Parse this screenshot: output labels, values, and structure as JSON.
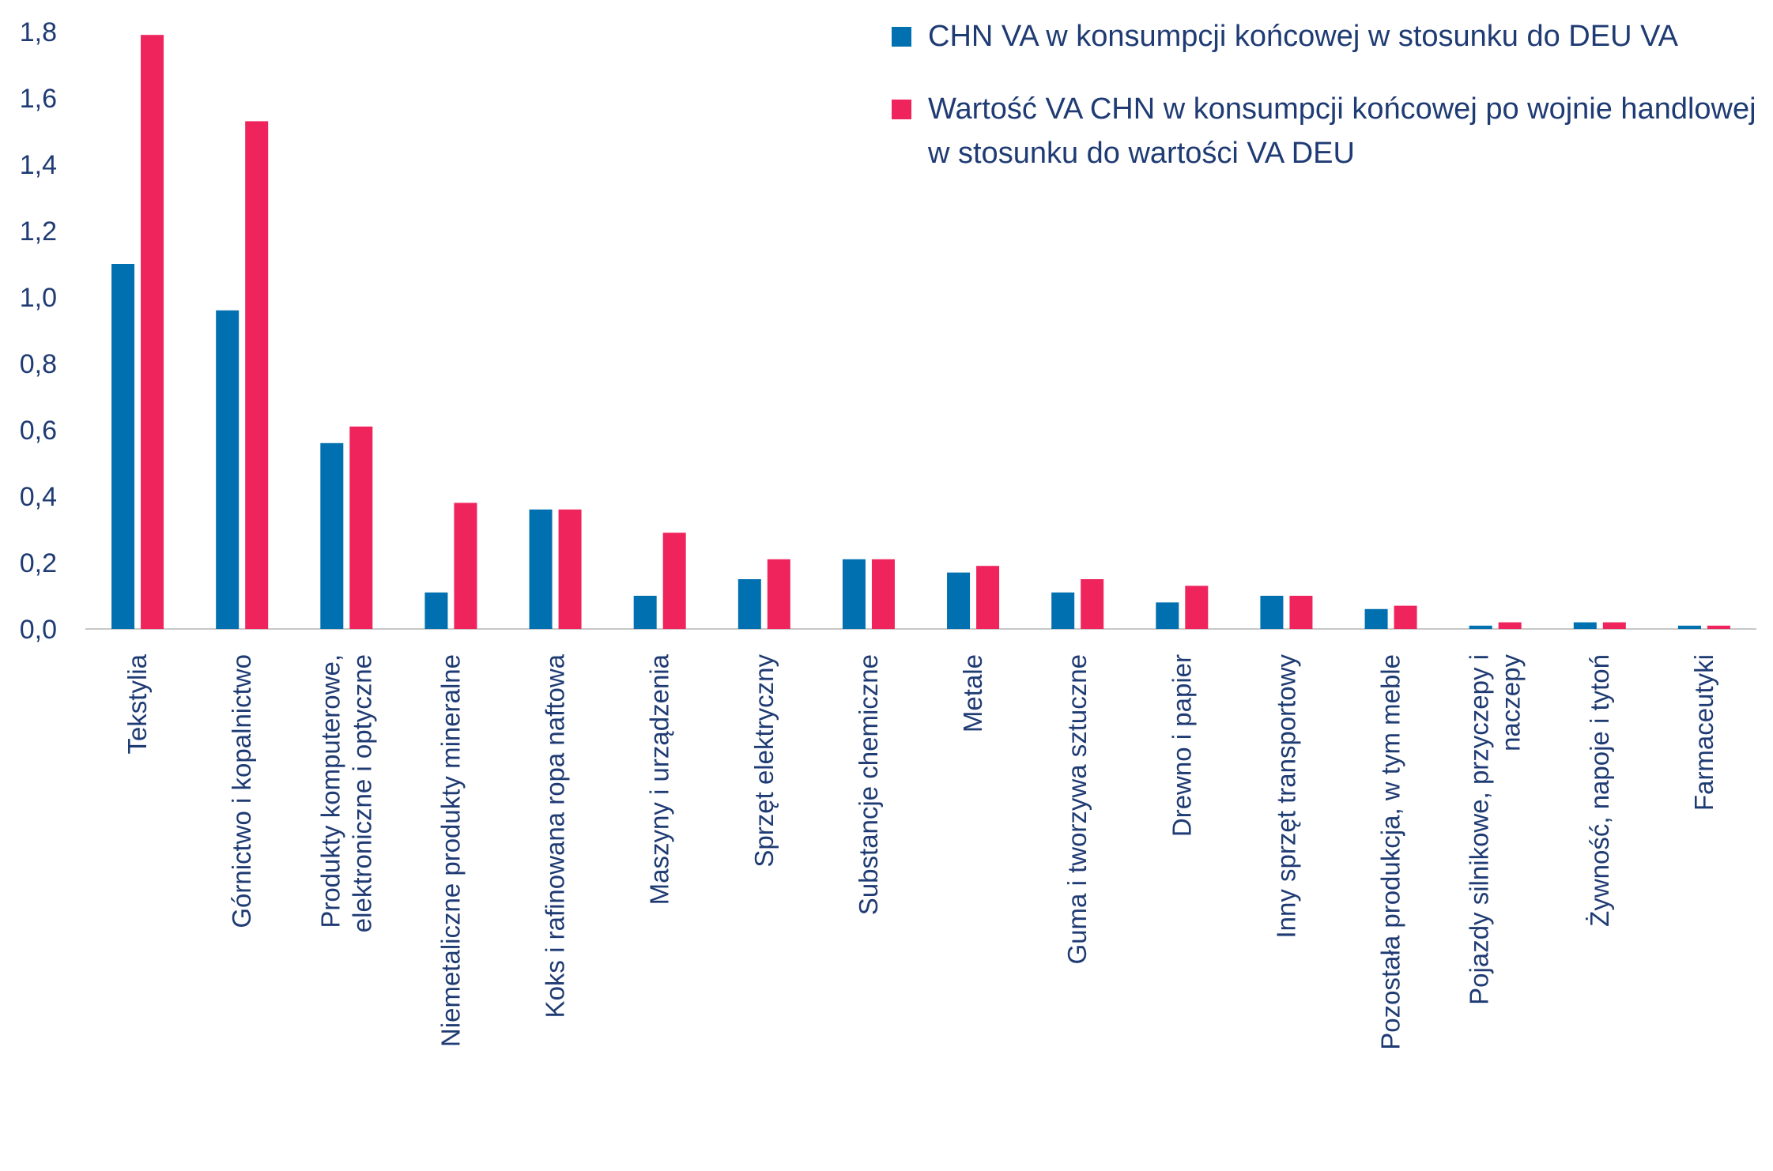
{
  "chart_data": {
    "type": "bar",
    "categories": [
      [
        "Tekstylia"
      ],
      [
        "Górnictwo i kopalnictwo"
      ],
      [
        "Produkty komputerowe,",
        "elektroniczne i optyczne"
      ],
      [
        "Niemetaliczne produkty mineralne"
      ],
      [
        "Koks i rafinowana ropa naftowa"
      ],
      [
        "Maszyny i urządzenia"
      ],
      [
        "Sprzęt elektryczny"
      ],
      [
        "Substancje chemiczne"
      ],
      [
        "Metale"
      ],
      [
        "Guma i tworzywa sztuczne"
      ],
      [
        "Drewno i papier"
      ],
      [
        "Inny sprzęt transportowy"
      ],
      [
        "Pozostała produkcja, w tym meble"
      ],
      [
        "Pojazdy silnikowe, przyczepy i",
        "naczepy"
      ],
      [
        "Żywność, napoje i tytoń"
      ],
      [
        "Farmaceutyki"
      ]
    ],
    "series": [
      {
        "name": "CHN VA w konsumpcji końcowej w stosunku do DEU VA",
        "color": "#0070b0",
        "values": [
          1.1,
          0.96,
          0.56,
          0.11,
          0.36,
          0.1,
          0.15,
          0.21,
          0.17,
          0.11,
          0.08,
          0.1,
          0.06,
          0.01,
          0.02,
          0.01
        ]
      },
      {
        "name": "Wartość VA CHN w konsumpcji końcowej po wojnie handlowej w stosunku do wartości VA DEU",
        "color": "#f0245c",
        "values": [
          1.79,
          1.53,
          0.61,
          0.38,
          0.36,
          0.29,
          0.21,
          0.21,
          0.19,
          0.15,
          0.13,
          0.1,
          0.07,
          0.02,
          0.02,
          0.01
        ]
      }
    ],
    "ylim": [
      0,
      1.8
    ],
    "yticks": [
      "0,0",
      "0,2",
      "0,4",
      "0,6",
      "0,8",
      "1,0",
      "1,2",
      "1,4",
      "1,6",
      "1,8"
    ],
    "legend_position": "top-right",
    "legend": [
      {
        "label": "CHN VA w konsumpcji końcowej w stosunku do DEU VA",
        "color": "#0070b0"
      },
      {
        "label": "Wartość VA CHN w konsumpcji końcowej po wojnie handlowej w stosunku do wartości VA DEU",
        "color": "#f0245c"
      }
    ],
    "grid": false
  }
}
